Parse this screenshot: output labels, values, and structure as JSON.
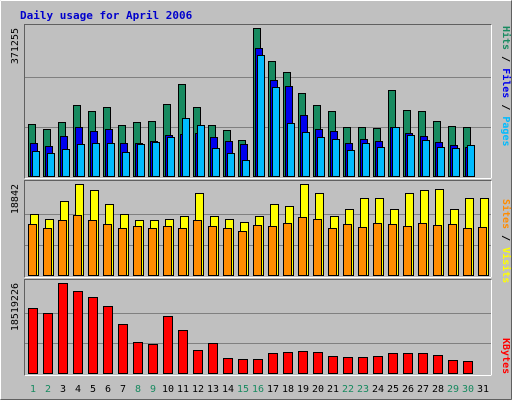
{
  "colors": {
    "background": "#c0c0c0",
    "plot_background": "#c0c0c0",
    "grid": "#808080",
    "title": "#0000cc",
    "hits": "#188a60",
    "files": "#0000ee",
    "pages": "#00bbff",
    "visits": "#ffff00",
    "sites": "#ff8c00",
    "kbytes": "#ff0000",
    "weekend_label": "#188a60",
    "weekday_label": "#000000",
    "separator": "#000000"
  },
  "chart_data": [
    {
      "type": "bar",
      "title": "Daily usage for April 2006",
      "categories": [
        "1",
        "2",
        "3",
        "4",
        "5",
        "6",
        "7",
        "8",
        "9",
        "10",
        "11",
        "12",
        "13",
        "14",
        "15",
        "16",
        "17",
        "18",
        "19",
        "20",
        "21",
        "22",
        "23",
        "24",
        "25",
        "26",
        "27",
        "28",
        "29",
        "30",
        "31"
      ],
      "weekend_days": [
        "1",
        "2",
        "8",
        "9",
        "15",
        "16",
        "22",
        "23",
        "29",
        "30"
      ],
      "max_label": "371255",
      "ylim": [
        0,
        371255
      ],
      "legend": [
        "Hits",
        "/",
        "Files",
        "/",
        "Pages"
      ],
      "series": [
        {
          "name": "Hits",
          "values": [
            131000,
            118000,
            136000,
            178000,
            164000,
            173000,
            128000,
            135000,
            138000,
            181000,
            230000,
            174000,
            129000,
            115000,
            91000,
            371000,
            289000,
            261000,
            208000,
            178000,
            164000,
            122000,
            123000,
            121000,
            216000,
            166000,
            162000,
            137000,
            126000,
            123000,
            0
          ]
        },
        {
          "name": "Files",
          "values": [
            84000,
            75000,
            101000,
            122000,
            112000,
            117000,
            83000,
            82000,
            88000,
            102000,
            105000,
            107000,
            99000,
            87000,
            80000,
            321000,
            240000,
            227000,
            153000,
            119000,
            112000,
            84000,
            94000,
            89000,
            124000,
            107000,
            101000,
            85000,
            79000,
            73000,
            0
          ]
        },
        {
          "name": "Pages",
          "values": [
            62000,
            57000,
            67000,
            80000,
            84000,
            82000,
            61000,
            80000,
            85000,
            97000,
            145000,
            128000,
            69000,
            57000,
            41000,
            303000,
            223000,
            134000,
            110000,
            97000,
            93000,
            66000,
            82000,
            74000,
            123000,
            104000,
            90000,
            74000,
            71000,
            79000,
            0
          ]
        }
      ]
    },
    {
      "type": "bar",
      "max_label": "18842",
      "ylim": [
        0,
        18842
      ],
      "legend": [
        "Sites",
        "/",
        "Visits"
      ],
      "series": [
        {
          "name": "Visits",
          "values": [
            12600,
            11600,
            15300,
            18800,
            17500,
            14600,
            12600,
            11300,
            11300,
            11600,
            12300,
            16900,
            12300,
            11600,
            10900,
            12300,
            14600,
            14300,
            18800,
            16900,
            12300,
            13600,
            15900,
            15900,
            13600,
            16900,
            17500,
            17900,
            13600,
            15900,
            15900
          ]
        },
        {
          "name": "Sites",
          "values": [
            10600,
            9800,
            11300,
            12500,
            11300,
            10600,
            9800,
            10100,
            9800,
            10100,
            9800,
            11300,
            10100,
            9800,
            9200,
            10300,
            10100,
            10800,
            12100,
            11600,
            9800,
            10600,
            9900,
            10800,
            10600,
            10100,
            10800,
            10300,
            10600,
            9800,
            9900
          ]
        }
      ]
    },
    {
      "type": "bar",
      "max_label": "18519226",
      "ylim": [
        0,
        18519226
      ],
      "legend": [
        "KBytes"
      ],
      "series": [
        {
          "name": "KBytes",
          "values": [
            13300000,
            12300000,
            18500000,
            16800000,
            15700000,
            13800000,
            10000000,
            6300000,
            5900000,
            11700000,
            8900000,
            4700000,
            6100000,
            3000000,
            2800000,
            2800000,
            4100000,
            4300000,
            4500000,
            4300000,
            3500000,
            3300000,
            3300000,
            3600000,
            4100000,
            4100000,
            4100000,
            3800000,
            2600000,
            2400000,
            0
          ]
        }
      ]
    }
  ]
}
